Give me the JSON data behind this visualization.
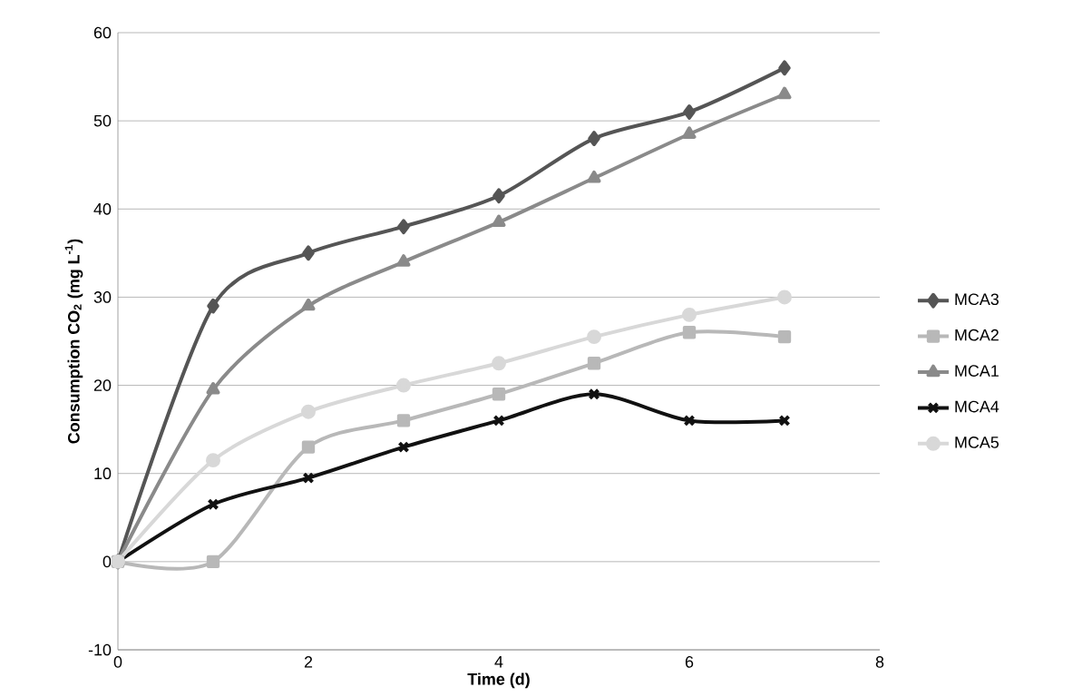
{
  "chart_data": {
    "type": "line",
    "xlabel": "Time (d)",
    "ylabel": "Consumption CO$_{2}$ (mg L$^{-1}$)",
    "x": [
      0,
      1,
      2,
      3,
      4,
      5,
      6,
      7
    ],
    "xlim": [
      0,
      8
    ],
    "xticks": [
      0,
      2,
      4,
      6,
      8
    ],
    "ylim": [
      -10,
      60
    ],
    "yticks": [
      -10,
      0,
      10,
      20,
      30,
      40,
      50,
      60
    ],
    "grid": "y",
    "legend": "right",
    "line_style": "solid",
    "series": [
      {
        "name": "MCA3",
        "color": "#555555",
        "marker": "diamond",
        "values": [
          0,
          29,
          35,
          38,
          41.5,
          48,
          51,
          56
        ]
      },
      {
        "name": "MCA2",
        "color": "#b8b8b8",
        "marker": "square",
        "values": [
          0,
          0,
          13,
          16,
          19,
          22.5,
          26,
          25.5
        ]
      },
      {
        "name": "MCA1",
        "color": "#8a8a8a",
        "marker": "triangle",
        "values": [
          0,
          19.5,
          29,
          34,
          38.5,
          43.5,
          48.5,
          53
        ]
      },
      {
        "name": "MCA4",
        "color": "#111111",
        "marker": "cross",
        "values": [
          0,
          6.5,
          9.5,
          13,
          16,
          19,
          16,
          16
        ]
      },
      {
        "name": "MCA5",
        "color": "#d8d8d8",
        "marker": "circle",
        "values": [
          0,
          11.5,
          17,
          20,
          22.5,
          25.5,
          28,
          30
        ]
      }
    ]
  }
}
